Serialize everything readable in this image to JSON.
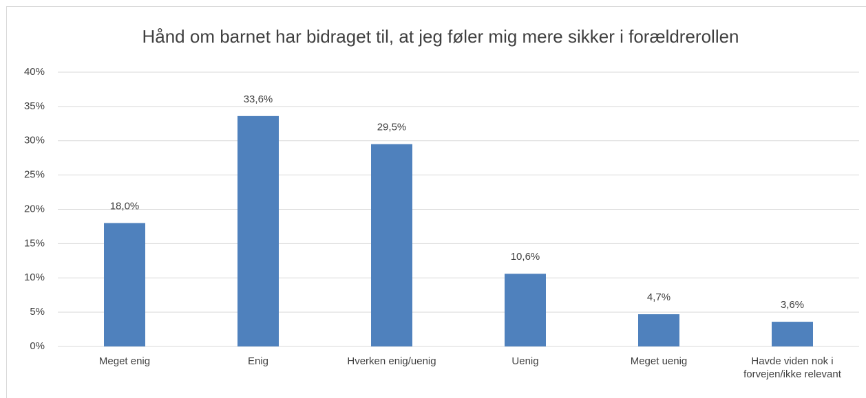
{
  "chart_data": {
    "type": "bar",
    "title": "Hånd om barnet har bidraget til, at jeg føler mig mere sikker i forældrerollen",
    "categories": [
      "Meget enig",
      "Enig",
      "Hverken enig/uenig",
      "Uenig",
      "Meget uenig",
      "Havde viden nok i forvejen/ikke relevant"
    ],
    "values": [
      18.0,
      33.6,
      29.5,
      10.6,
      4.7,
      3.6
    ],
    "value_labels": [
      "18,0%",
      "33,6%",
      "29,5%",
      "10,6%",
      "4,7%",
      "3,6%"
    ],
    "color": "#4f81bd",
    "ylim": [
      0,
      40
    ],
    "yticks": [
      {
        "value": 0,
        "label": "0%"
      },
      {
        "value": 5,
        "label": "5%"
      },
      {
        "value": 10,
        "label": "10%"
      },
      {
        "value": 15,
        "label": "15%"
      },
      {
        "value": 20,
        "label": "20%"
      },
      {
        "value": 25,
        "label": "25%"
      },
      {
        "value": 30,
        "label": "30%"
      },
      {
        "value": 35,
        "label": "35%"
      },
      {
        "value": 40,
        "label": "40%"
      }
    ],
    "grid": true
  }
}
